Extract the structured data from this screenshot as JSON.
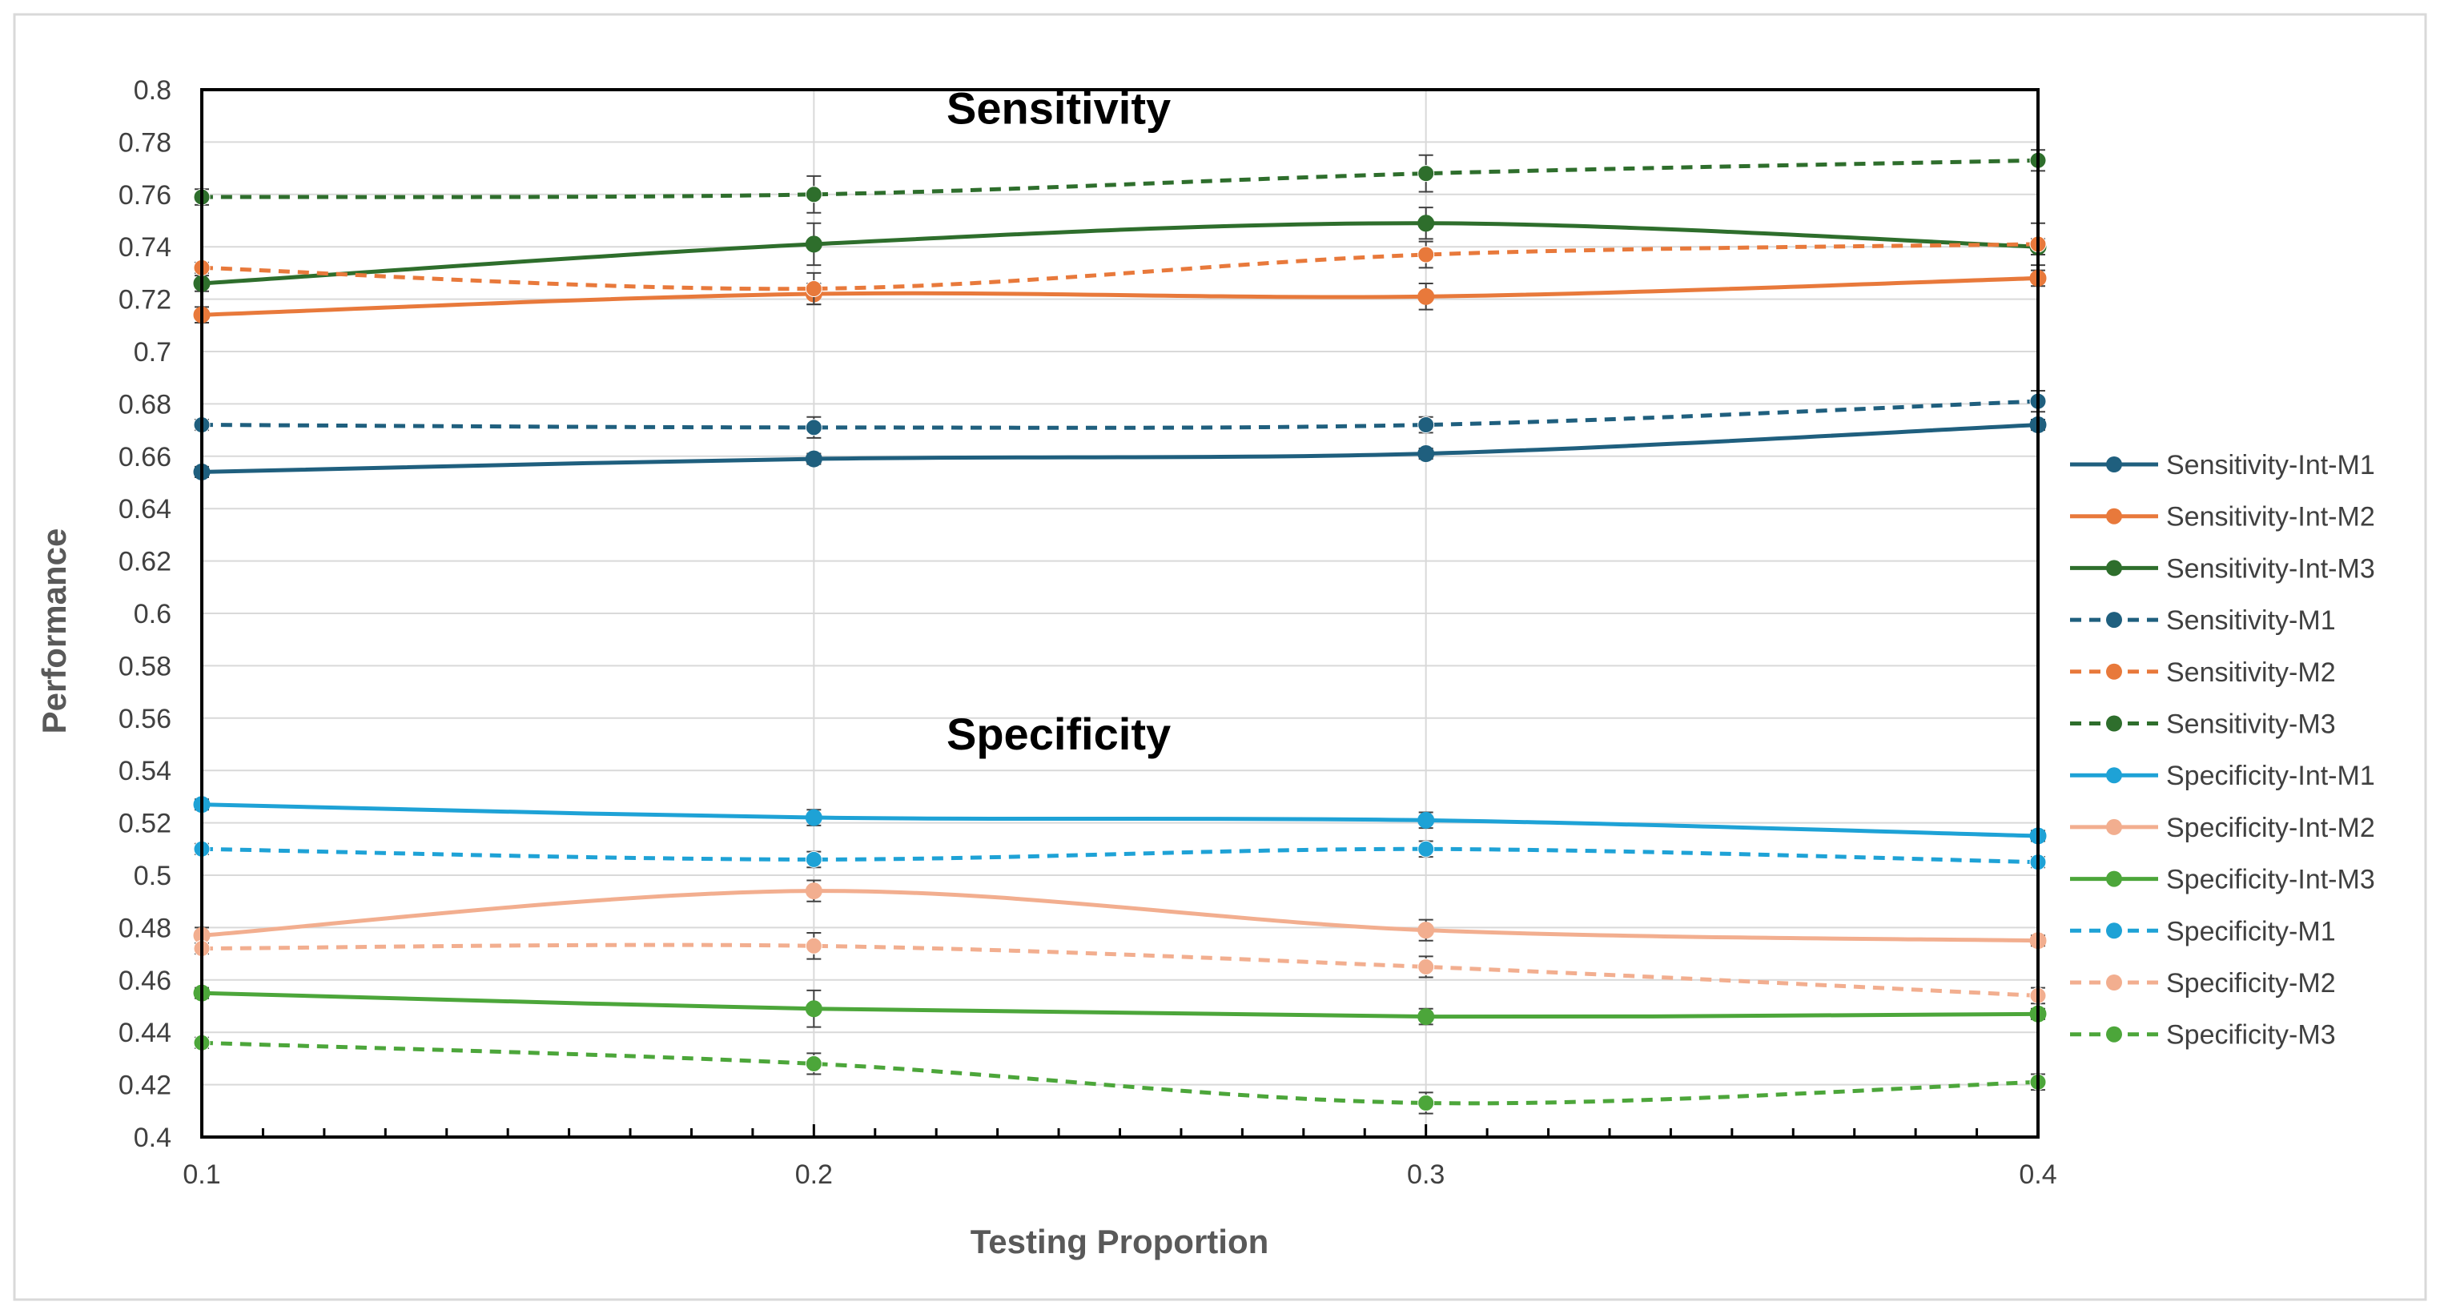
{
  "chart_data": {
    "type": "line",
    "xlabel": "Testing Proportion",
    "ylabel": "Performance",
    "x": [
      0.1,
      0.2,
      0.3,
      0.4
    ],
    "x_tick_labels": [
      "0.1",
      "0.2",
      "0.3",
      "0.4"
    ],
    "xlim": [
      0.1,
      0.4
    ],
    "ylim": [
      0.4,
      0.8
    ],
    "y_ticks": [
      0.4,
      0.42,
      0.44,
      0.46,
      0.48,
      0.5,
      0.52,
      0.54,
      0.56,
      0.58,
      0.6,
      0.62,
      0.64,
      0.66,
      0.68,
      0.7,
      0.72,
      0.74,
      0.76,
      0.78,
      0.8
    ],
    "y_tick_labels": [
      "0.4",
      "0.42",
      "0.44",
      "0.46",
      "0.48",
      "0.5",
      "0.52",
      "0.54",
      "0.56",
      "0.58",
      "0.6",
      "0.62",
      "0.64",
      "0.66",
      "0.68",
      "0.7",
      "0.72",
      "0.74",
      "0.76",
      "0.78",
      "0.8"
    ],
    "grid": true,
    "legend_position": "right",
    "annotations": [
      {
        "text": "Sensitivity",
        "x": 0.24,
        "y": 0.787
      },
      {
        "text": "Specificity",
        "x": 0.24,
        "y": 0.548
      }
    ],
    "series": [
      {
        "name": "Sensitivity-Int-M1",
        "color": "#1f5f7e",
        "dash": false,
        "values": [
          0.654,
          0.659,
          0.661,
          0.672
        ],
        "errors": [
          0.002,
          0.002,
          0.002,
          0.002
        ]
      },
      {
        "name": "Sensitivity-Int-M2",
        "color": "#e8793b",
        "dash": false,
        "values": [
          0.714,
          0.722,
          0.721,
          0.728
        ],
        "errors": [
          0.003,
          0.004,
          0.005,
          0.003
        ]
      },
      {
        "name": "Sensitivity-Int-M3",
        "color": "#2e6e2c",
        "dash": false,
        "values": [
          0.726,
          0.741,
          0.749,
          0.74
        ],
        "errors": [
          0.003,
          0.008,
          0.006,
          0.003
        ]
      },
      {
        "name": "Sensitivity-M1",
        "color": "#1f5f7e",
        "dash": true,
        "values": [
          0.672,
          0.671,
          0.672,
          0.681
        ],
        "errors": [
          0.002,
          0.004,
          0.003,
          0.004
        ]
      },
      {
        "name": "Sensitivity-M2",
        "color": "#e8793b",
        "dash": true,
        "values": [
          0.732,
          0.724,
          0.737,
          0.741
        ],
        "errors": [
          0.002,
          0.006,
          0.005,
          0.008
        ]
      },
      {
        "name": "Sensitivity-M3",
        "color": "#2e6e2c",
        "dash": true,
        "values": [
          0.759,
          0.76,
          0.768,
          0.773
        ],
        "errors": [
          0.003,
          0.007,
          0.007,
          0.004
        ]
      },
      {
        "name": "Specificity-Int-M1",
        "color": "#1ea2d6",
        "dash": false,
        "values": [
          0.527,
          0.522,
          0.521,
          0.515
        ],
        "errors": [
          0.002,
          0.003,
          0.003,
          0.002
        ]
      },
      {
        "name": "Specificity-Int-M2",
        "color": "#f2ae8f",
        "dash": false,
        "values": [
          0.477,
          0.494,
          0.479,
          0.475
        ],
        "errors": [
          0.003,
          0.004,
          0.004,
          0.002
        ]
      },
      {
        "name": "Specificity-Int-M3",
        "color": "#4ca63a",
        "dash": false,
        "values": [
          0.455,
          0.449,
          0.446,
          0.447
        ],
        "errors": [
          0.002,
          0.007,
          0.003,
          0.002
        ]
      },
      {
        "name": "Specificity-M1",
        "color": "#1ea2d6",
        "dash": true,
        "values": [
          0.51,
          0.506,
          0.51,
          0.505
        ],
        "errors": [
          0.002,
          0.003,
          0.003,
          0.002
        ]
      },
      {
        "name": "Specificity-M2",
        "color": "#f2ae8f",
        "dash": true,
        "values": [
          0.472,
          0.473,
          0.465,
          0.454
        ],
        "errors": [
          0.002,
          0.005,
          0.004,
          0.003
        ]
      },
      {
        "name": "Specificity-M3",
        "color": "#4ca63a",
        "dash": true,
        "values": [
          0.436,
          0.428,
          0.413,
          0.421
        ],
        "errors": [
          0.002,
          0.004,
          0.004,
          0.003
        ]
      }
    ]
  }
}
